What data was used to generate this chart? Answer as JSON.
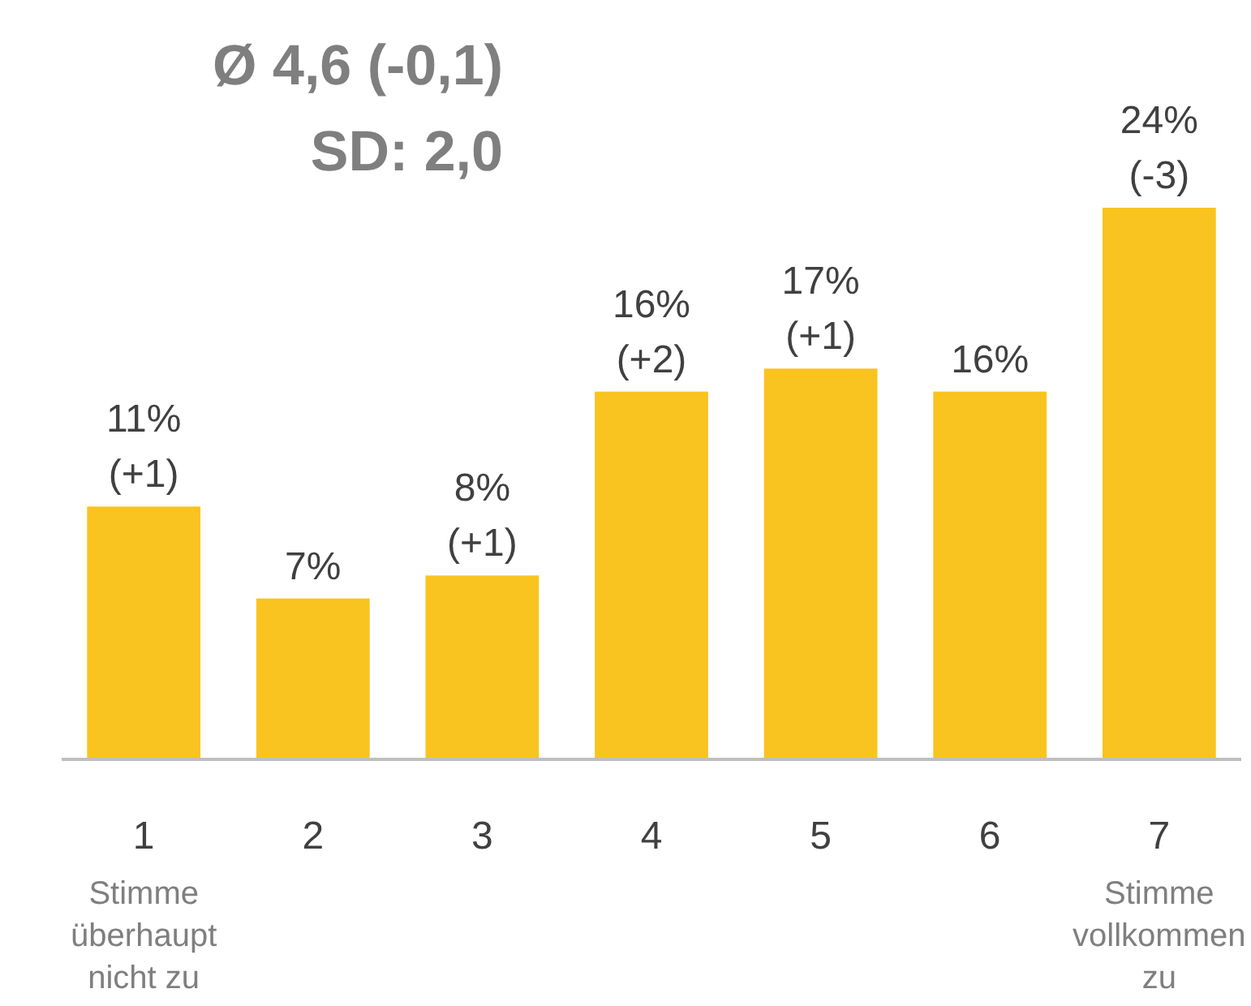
{
  "chart_data": {
    "type": "bar",
    "title": "Ø 4,6 (-0,1)",
    "subtitle": "SD: 2,0",
    "categories": [
      "1",
      "2",
      "3",
      "4",
      "5",
      "6",
      "7"
    ],
    "values": [
      11,
      7,
      8,
      16,
      17,
      16,
      24
    ],
    "color": "#f9c41f",
    "value_labels": [
      "11%\n(+1)",
      "7%",
      "8%\n(+1)",
      "16%\n(+2)",
      "17%\n(+1)",
      "16%",
      "24%\n(-3)"
    ],
    "annotations": [
      "Stimme überhaupt nicht zu",
      "Stimme vollkommen zu"
    ]
  }
}
